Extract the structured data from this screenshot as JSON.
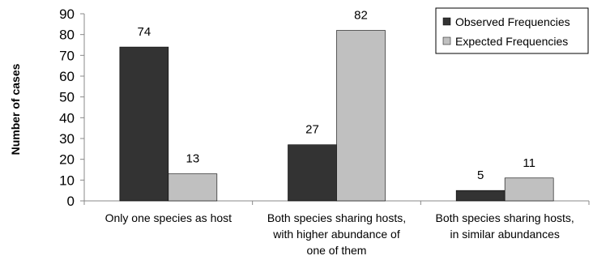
{
  "chart_data": {
    "type": "bar",
    "title": "",
    "xlabel": "",
    "ylabel": "Number of cases",
    "ylim": [
      0,
      90
    ],
    "yticks": [
      0,
      10,
      20,
      30,
      40,
      50,
      60,
      70,
      80,
      90
    ],
    "grid": false,
    "legend_position": "top-right",
    "categories": [
      [
        "Only one species as host"
      ],
      [
        "Both species sharing hosts,",
        "with higher abundance of",
        "one of them"
      ],
      [
        "Both species sharing hosts,",
        "in similar abundances"
      ]
    ],
    "series": [
      {
        "name": "Observed Frequencies",
        "color": "#333333",
        "values": [
          74,
          27,
          5
        ]
      },
      {
        "name": "Expected Frequencies",
        "color": "#c0c0c0",
        "values": [
          13,
          82,
          11
        ]
      }
    ]
  }
}
